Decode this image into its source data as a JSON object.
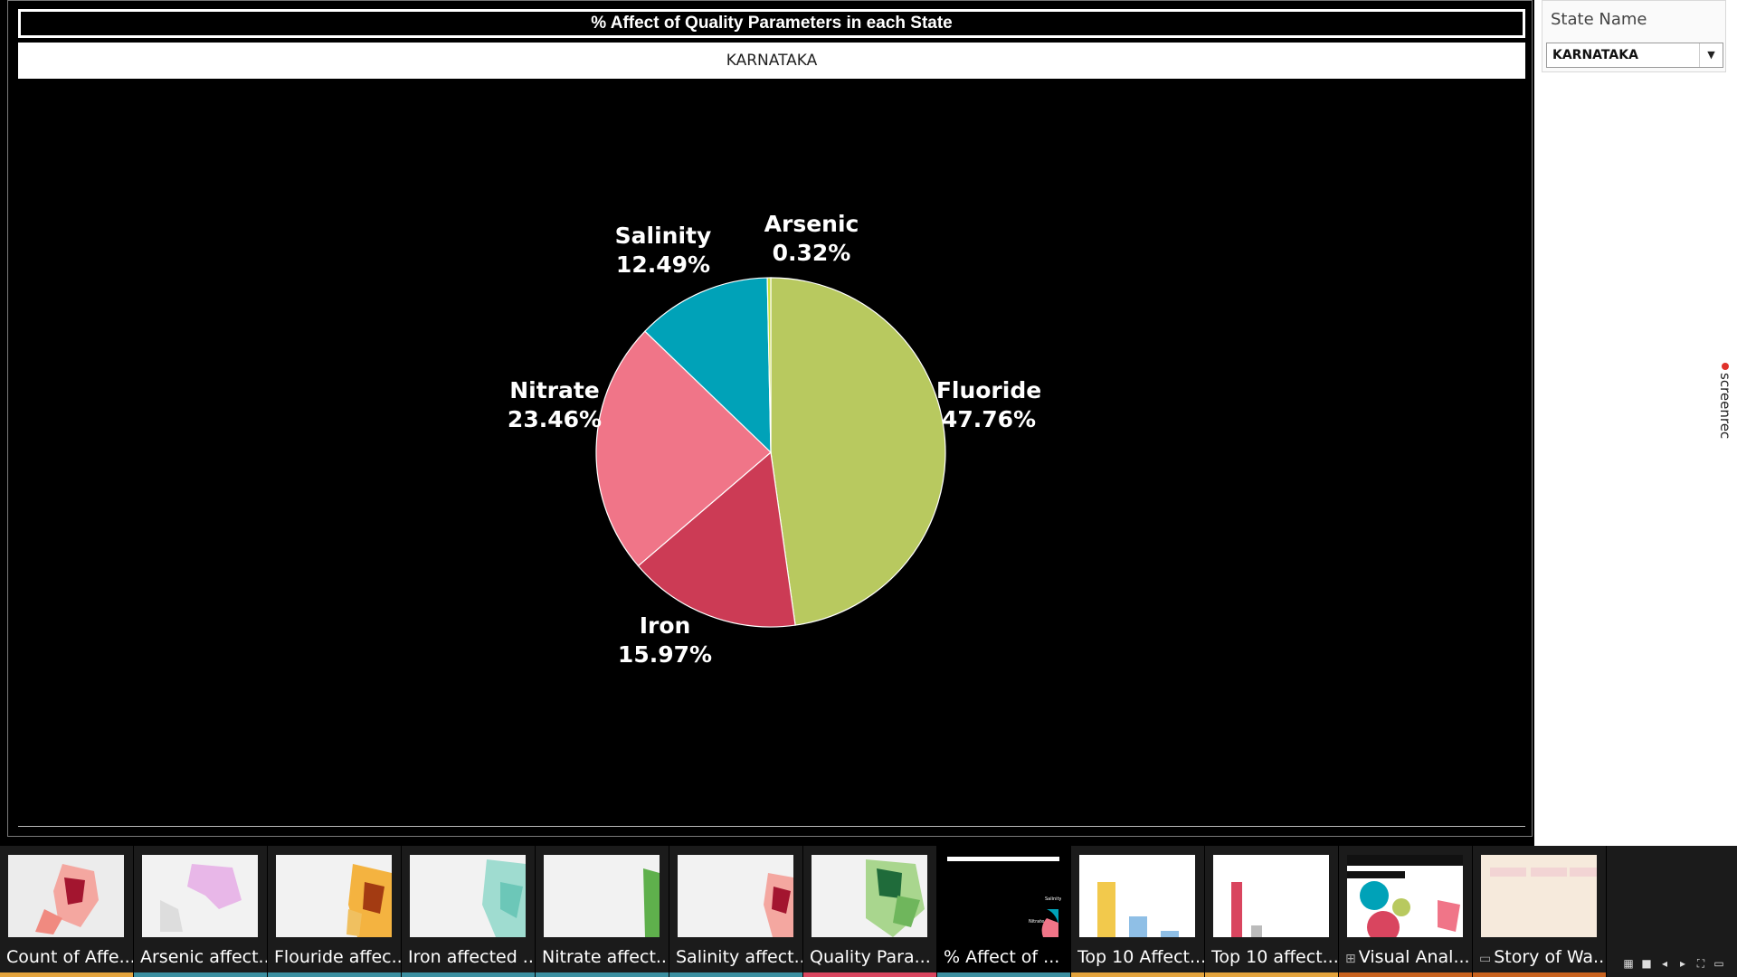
{
  "sheet": {
    "title": "% Affect of Quality Parameters in each State",
    "state_banner": "KARNATAKA"
  },
  "filter": {
    "title": "State Name",
    "selected": "KARNATAKA"
  },
  "watermark": "screenrec",
  "chart_data": {
    "type": "pie",
    "title": "",
    "slices": [
      {
        "label": "Fluoride",
        "value": 47.76,
        "display": "47.76%",
        "color": "#b8c95f"
      },
      {
        "label": "Iron",
        "value": 15.97,
        "display": "15.97%",
        "color": "#cc3b55"
      },
      {
        "label": "Nitrate",
        "value": 23.46,
        "display": "23.46%",
        "color": "#f07588"
      },
      {
        "label": "Salinity",
        "value": 12.49,
        "display": "12.49%",
        "color": "#00a2b8"
      },
      {
        "label": "Arsenic",
        "value": 0.32,
        "display": "0.32%",
        "color": "#c9e03a"
      }
    ]
  },
  "tabs": [
    {
      "label": "Count of Affe...",
      "color": "#e3a33c",
      "thumb": "map-red",
      "icon": ""
    },
    {
      "label": "Arsenic affect...",
      "color": "#3b8fa0",
      "thumb": "map-pink",
      "icon": ""
    },
    {
      "label": "Flouride affec...",
      "color": "#3b8fa0",
      "thumb": "map-orange",
      "icon": ""
    },
    {
      "label": "Iron affected ...",
      "color": "#3b8fa0",
      "thumb": "map-teal",
      "icon": ""
    },
    {
      "label": "Nitrate affect...",
      "color": "#3b8fa0",
      "thumb": "map-green",
      "icon": ""
    },
    {
      "label": "Salinity affect...",
      "color": "#3b8fa0",
      "thumb": "map-red2",
      "icon": ""
    },
    {
      "label": "Quality Para...",
      "color": "#d9455f",
      "thumb": "map-darkgreen",
      "icon": ""
    },
    {
      "label": "% Affect of ...",
      "color": "#3b8fa0",
      "thumb": "pie-dark",
      "icon": ""
    },
    {
      "label": "Top 10 Affect...",
      "color": "#e3a33c",
      "thumb": "bars-yellow",
      "icon": ""
    },
    {
      "label": "Top 10 affect...",
      "color": "#e3a33c",
      "thumb": "bars-red",
      "icon": ""
    },
    {
      "label": "Visual Anal...",
      "color": "#c8621e",
      "thumb": "dashboard",
      "icon": "dashboard-icon"
    },
    {
      "label": "Story of Wa...",
      "color": "#c8621e",
      "thumb": "story",
      "icon": "story-icon"
    }
  ],
  "active_tab": 7,
  "controls": [
    "grid-view-icon",
    "list-view-icon",
    "prev-sheet-icon",
    "next-sheet-icon",
    "fullscreen-icon",
    "present-icon"
  ]
}
